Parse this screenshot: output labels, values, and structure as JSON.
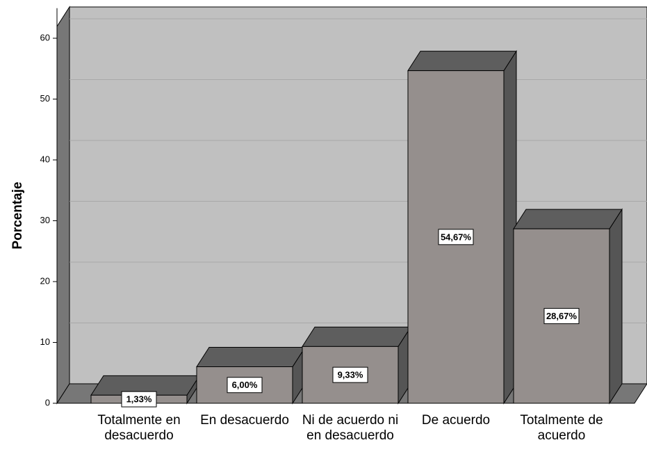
{
  "chart_data": {
    "type": "bar",
    "y_label": "Porcentaje",
    "categories": [
      "Totalmente en desacuerdo",
      "En desacuerdo",
      "Ni de acuerdo ni en desacuerdo",
      "De acuerdo",
      "Totalmente de acuerdo"
    ],
    "values": [
      1.33,
      6.0,
      9.33,
      54.67,
      28.67
    ],
    "value_labels": [
      "1,33%",
      "6,00%",
      "9,33%",
      "54,67%",
      "28,67%"
    ],
    "color": "#958f8d",
    "ylim": [
      0,
      65
    ],
    "yticks": [
      0,
      10,
      20,
      30,
      40,
      50,
      60
    ],
    "grid": true
  }
}
